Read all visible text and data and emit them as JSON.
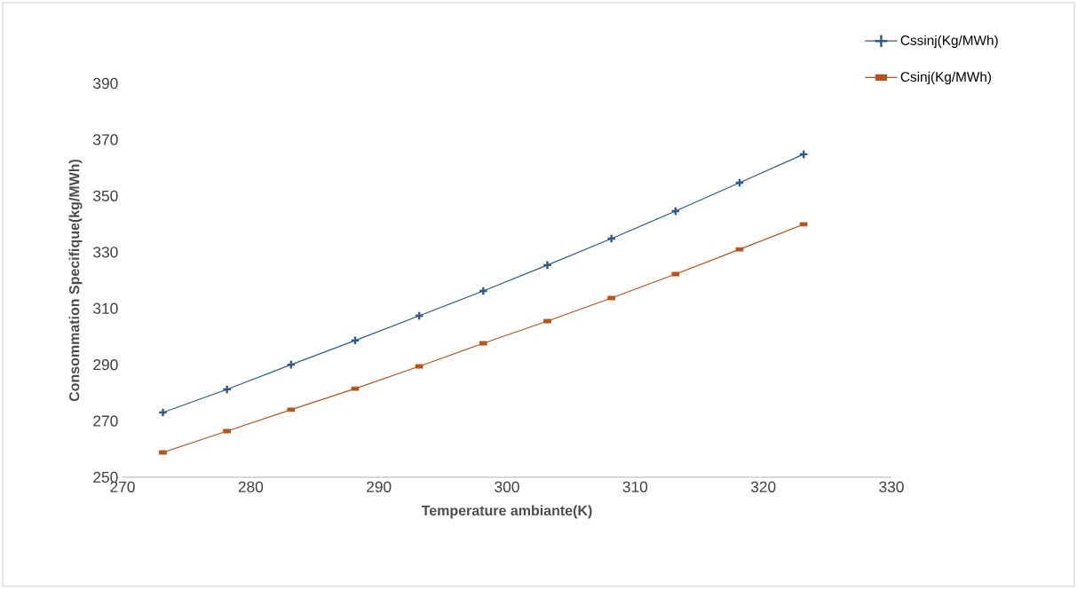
{
  "chart_data": {
    "type": "line",
    "xlabel": "Temperature ambiante(K)",
    "ylabel": "Consommation Specifique(kg/MWh)",
    "x": [
      273.15,
      278.15,
      283.15,
      288.15,
      293.15,
      298.15,
      303.15,
      308.15,
      313.15,
      318.15,
      323.15
    ],
    "series": [
      {
        "name": "Cssinj(Kg/MWh)",
        "color": "#2e5a8a",
        "marker": "cross",
        "values": [
          273.0,
          281.2,
          290.0,
          298.6,
          307.4,
          316.2,
          325.4,
          334.8,
          344.6,
          354.7,
          364.8
        ]
      },
      {
        "name": "Csinj(Kg/MWh)",
        "color": "#b5541a",
        "marker": "square",
        "values": [
          258.8,
          266.4,
          274.0,
          281.5,
          289.4,
          297.6,
          305.5,
          313.7,
          322.2,
          331.0,
          339.9
        ]
      }
    ],
    "xlim": [
      270,
      330
    ],
    "xticks": [
      270,
      280,
      290,
      300,
      310,
      320,
      330
    ],
    "ylim": [
      250,
      390
    ],
    "yticks": [
      250,
      270,
      290,
      310,
      330,
      350,
      370,
      390
    ],
    "grid": false,
    "legend": "top right",
    "line_style": "solid"
  }
}
